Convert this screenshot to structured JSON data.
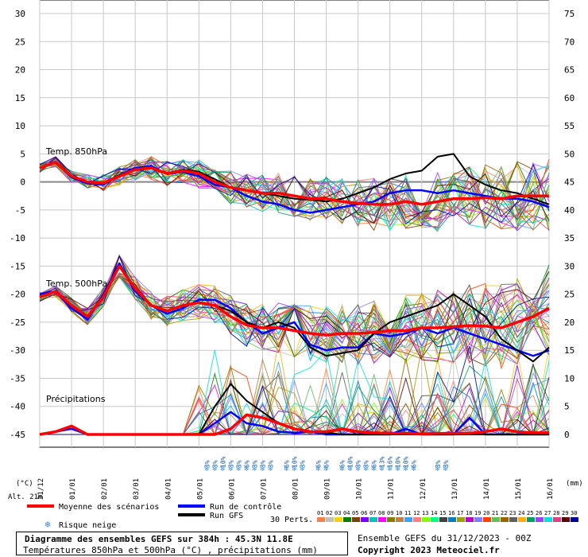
{
  "chart_data": {
    "type": "line",
    "title": "Diagramme des ensembles GEFS sur 384h : 45.3N 11.8E",
    "subtitle": "Températures 850hPa et 500hPa (°C) , précipitations (mm)",
    "left_axis": {
      "label": "(°C)",
      "ticks": [
        "30",
        "25",
        "20",
        "15",
        "10",
        "5",
        "0",
        "-5",
        "-10",
        "-15",
        "-20",
        "-25",
        "-30",
        "-35",
        "-40",
        "-45"
      ],
      "range": [
        -45,
        30
      ]
    },
    "right_axis": {
      "label": "(mm)",
      "ticks": [
        "75",
        "70",
        "65",
        "60",
        "55",
        "50",
        "45",
        "40",
        "35",
        "30",
        "25",
        "20",
        "15",
        "10",
        "5",
        "0"
      ],
      "range": [
        0,
        75
      ]
    },
    "x_ticks": [
      "31/12",
      "01/01",
      "02/01",
      "03/01",
      "04/01",
      "05/01",
      "06/01",
      "07/01",
      "08/01",
      "09/01",
      "10/01",
      "11/01",
      "12/01",
      "13/01",
      "14/01",
      "15/01",
      "16/01"
    ],
    "panel_labels": {
      "t850": "Temp. 850hPa",
      "t500": "Temp. 500hPa",
      "precip": "Précipitations"
    },
    "altitude_label": "Alt. 21m",
    "series": [
      {
        "name": "Moyenne des scénarios",
        "color": "#ff0000",
        "t850": [
          2.5,
          3.5,
          1,
          0,
          -0.2,
          1,
          2.2,
          2.5,
          1.5,
          2,
          1.5,
          0,
          -1,
          -1.5,
          -2,
          -2,
          -2.5,
          -3,
          -3,
          -3.5,
          -3.8,
          -4,
          -4,
          -3.5,
          -4,
          -3.5,
          -3,
          -3,
          -2.8,
          -3,
          -2.5,
          -2.5,
          -2.5
        ],
        "t500": [
          -20.5,
          -19.5,
          -22,
          -24,
          -20.5,
          -15,
          -19,
          -22,
          -23,
          -22,
          -21.5,
          -22,
          -24,
          -25.5,
          -26,
          -26,
          -26.5,
          -27,
          -27.3,
          -27,
          -27,
          -26.8,
          -26.5,
          -26.5,
          -26,
          -26,
          -25.8,
          -25.6,
          -25.7,
          -26,
          -25,
          -24,
          -22.5
        ],
        "precip": [
          0,
          0.5,
          1.5,
          0,
          0,
          0,
          0,
          0,
          0,
          0,
          0,
          0,
          1,
          3.5,
          3,
          2,
          1,
          0.5,
          0.5,
          1,
          0.5,
          0.3,
          0.2,
          0.2,
          0.1,
          0.2,
          0.2,
          0.2,
          0.5,
          1,
          0.5,
          0.3,
          0.3
        ]
      },
      {
        "name": "Run de contrôle",
        "color": "#0000ff",
        "t850": [
          2.5,
          3.6,
          0.8,
          -0.3,
          -0.5,
          1.2,
          2.5,
          2.8,
          1.4,
          1.8,
          1,
          -0.5,
          -1,
          -2.5,
          -3.5,
          -4,
          -5,
          -5.5,
          -5,
          -4.5,
          -4,
          -3.5,
          -2,
          -1.5,
          -1.5,
          -2,
          -1.5,
          -2,
          -2.5,
          -3,
          -3,
          -3.5,
          -4.5
        ],
        "t500": [
          -20,
          -19.5,
          -22.5,
          -24.5,
          -20,
          -14.5,
          -19.5,
          -22,
          -23.5,
          -22.5,
          -21,
          -21,
          -22.5,
          -25,
          -27,
          -26,
          -25,
          -29,
          -30,
          -29.5,
          -29.5,
          -27,
          -27.5,
          -27,
          -26,
          -27,
          -26,
          -27,
          -28,
          -29,
          -30,
          -31,
          -30
        ],
        "precip": [
          0,
          0.5,
          1,
          0,
          0,
          0,
          0,
          0,
          0,
          0,
          0,
          2,
          4,
          2,
          1.5,
          0.5,
          0.3,
          0.5,
          0,
          0,
          0,
          0,
          0,
          1,
          0,
          0,
          0,
          3,
          0,
          0,
          0,
          0,
          0
        ]
      },
      {
        "name": "Run GFS",
        "color": "#000000",
        "t850": [
          2.5,
          3.5,
          0.8,
          0,
          -0.2,
          1.2,
          2.3,
          2.6,
          1.6,
          2.2,
          1.8,
          0.5,
          -1,
          -1.5,
          -2,
          -2.5,
          -3,
          -3.2,
          -3.5,
          -3,
          -2,
          -1,
          0.5,
          1.5,
          2,
          4.5,
          5,
          1,
          -0.5,
          -1.5,
          -2,
          -3,
          -4
        ],
        "t500": [
          -20.5,
          -19.5,
          -22,
          -24,
          -20.5,
          -15,
          -19,
          -22,
          -23,
          -22,
          -21.5,
          -22,
          -23,
          -25,
          -26,
          -25,
          -26,
          -29.5,
          -31,
          -30.5,
          -30,
          -27,
          -25,
          -24,
          -23,
          -22,
          -20,
          -22,
          -24,
          -28,
          -30,
          -32,
          -29.5
        ],
        "precip": [
          0,
          0.5,
          1.5,
          0,
          0,
          0,
          0,
          0,
          0,
          0,
          0,
          5,
          9,
          6,
          4,
          2,
          1,
          0.5,
          0.3,
          0,
          0,
          0,
          0,
          0,
          0,
          0,
          0,
          0,
          0,
          0,
          0,
          0,
          0
        ]
      }
    ],
    "legend": [
      "Moyenne des scénarios",
      "Run de contrôle",
      "Run GFS",
      "Risque neige"
    ],
    "perts_label": "30 Perts.",
    "perts": [
      {
        "id": "01",
        "color": "#ff8040"
      },
      {
        "id": "02",
        "color": "#c0c0c0"
      },
      {
        "id": "03",
        "color": "#ffd000"
      },
      {
        "id": "04",
        "color": "#008000"
      },
      {
        "id": "05",
        "color": "#804000"
      },
      {
        "id": "06",
        "color": "#8000ff"
      },
      {
        "id": "07",
        "color": "#00c0c0"
      },
      {
        "id": "08",
        "color": "#ff00ff"
      },
      {
        "id": "09",
        "color": "#808000"
      },
      {
        "id": "10",
        "color": "#c08040"
      },
      {
        "id": "11",
        "color": "#40a0ff"
      },
      {
        "id": "12",
        "color": "#ff8080"
      },
      {
        "id": "13",
        "color": "#80ff00"
      },
      {
        "id": "14",
        "color": "#00ff80"
      },
      {
        "id": "15",
        "color": "#404040"
      },
      {
        "id": "16",
        "color": "#0080c0"
      },
      {
        "id": "17",
        "color": "#a0a000"
      },
      {
        "id": "18",
        "color": "#c000c0"
      },
      {
        "id": "19",
        "color": "#8080ff"
      },
      {
        "id": "20",
        "color": "#ff4000"
      },
      {
        "id": "21",
        "color": "#60c060"
      },
      {
        "id": "22",
        "color": "#a06000"
      },
      {
        "id": "23",
        "color": "#606060"
      },
      {
        "id": "24",
        "color": "#ffb000"
      },
      {
        "id": "25",
        "color": "#00a060"
      },
      {
        "id": "26",
        "color": "#a040ff"
      },
      {
        "id": "27",
        "color": "#00e0e0"
      },
      {
        "id": "28",
        "color": "#e04080"
      },
      {
        "id": "29",
        "color": "#600000"
      },
      {
        "id": "30",
        "color": "#0000a0"
      }
    ],
    "snow_risk": [
      {
        "step": 21,
        "pct": "3%"
      },
      {
        "step": 22,
        "pct": "3%"
      },
      {
        "step": 23,
        "pct": "10%"
      },
      {
        "step": 24,
        "pct": "3%"
      },
      {
        "step": 25,
        "pct": "3%"
      },
      {
        "step": 26,
        "pct": "6%"
      },
      {
        "step": 27,
        "pct": "3%"
      },
      {
        "step": 28,
        "pct": "3%"
      },
      {
        "step": 29,
        "pct": "3%"
      },
      {
        "step": 31,
        "pct": "6%"
      },
      {
        "step": 32,
        "pct": "10%"
      },
      {
        "step": 33,
        "pct": "3%"
      },
      {
        "step": 35,
        "pct": "6%"
      },
      {
        "step": 36,
        "pct": "6%"
      },
      {
        "step": 38,
        "pct": "6%"
      },
      {
        "step": 39,
        "pct": "10%"
      },
      {
        "step": 40,
        "pct": "3%"
      },
      {
        "step": 41,
        "pct": "3%"
      },
      {
        "step": 42,
        "pct": "6%"
      },
      {
        "step": 43,
        "pct": "13%"
      },
      {
        "step": 44,
        "pct": "16%"
      },
      {
        "step": 45,
        "pct": "10%"
      },
      {
        "step": 46,
        "pct": "10%"
      },
      {
        "step": 47,
        "pct": "6%"
      },
      {
        "step": 50,
        "pct": "3%"
      },
      {
        "step": 51,
        "pct": "3%"
      }
    ]
  },
  "footer": {
    "caption_line1": "Diagramme des ensembles GEFS sur 384h : 45.3N 11.8E",
    "caption_line2": "Températures 850hPa et 500hPa (°C) , précipitations (mm)",
    "run_info": "Ensemble GEFS du 31/12/2023 - 00Z",
    "copyright": "Copyright 2023 Meteociel.fr"
  }
}
